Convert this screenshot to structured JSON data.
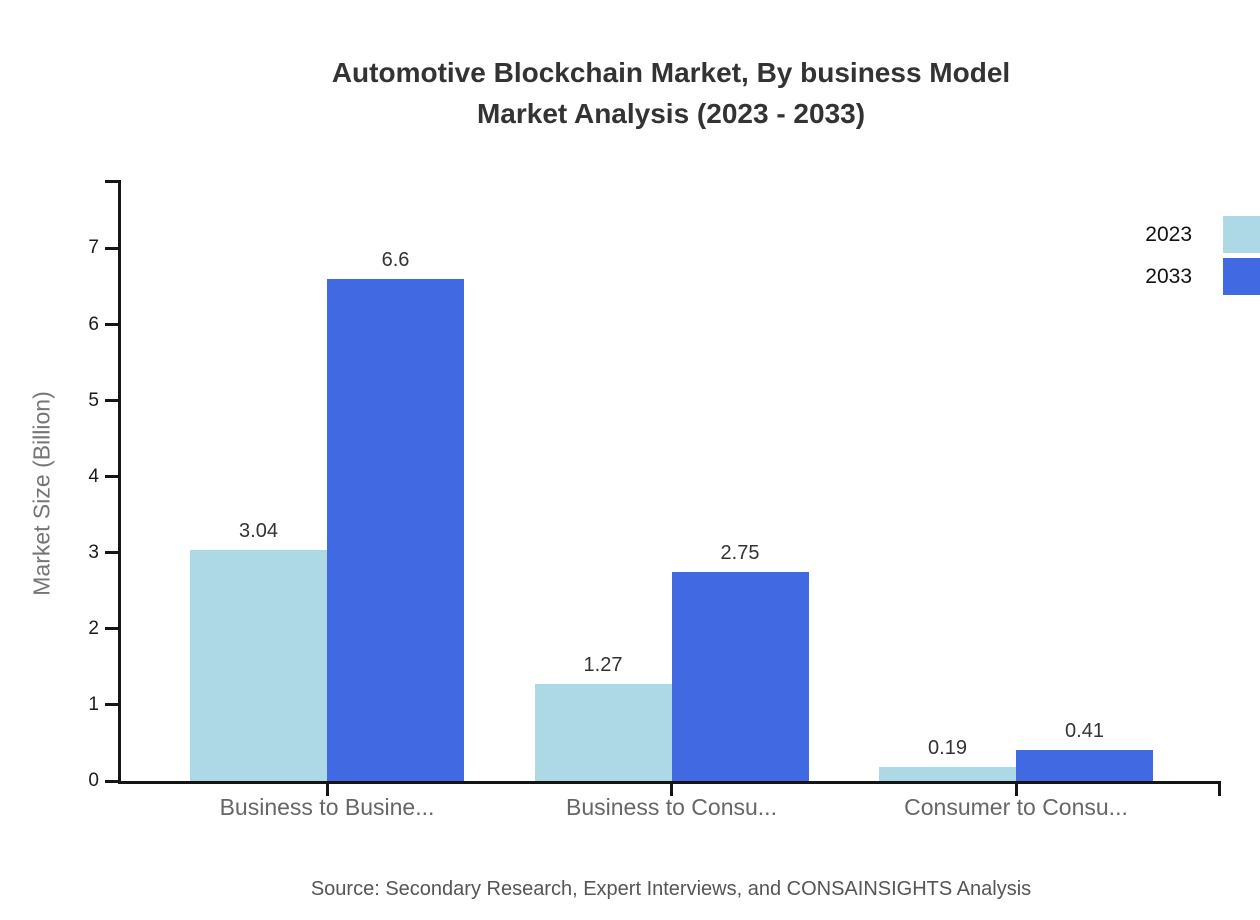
{
  "title": {
    "line1": "Automotive Blockchain Market, By business Model",
    "line2": "Market Analysis (2023 - 2033)"
  },
  "chart_data": {
    "type": "bar",
    "categories": [
      "Business to Busine...",
      "Business to Consu...",
      "Consumer to Consu..."
    ],
    "series": [
      {
        "name": "2023",
        "color": "#ADD8E6",
        "values": [
          3.04,
          1.27,
          0.19
        ]
      },
      {
        "name": "2033",
        "color": "#4169E1",
        "values": [
          6.6,
          2.75,
          0.41
        ]
      }
    ],
    "value_labels": [
      [
        "3.04",
        "1.27",
        "0.19"
      ],
      [
        "6.6",
        "2.75",
        "0.41"
      ]
    ],
    "ylabel": "Market Size (Billion)",
    "xlabel": "",
    "ylim": [
      0,
      7.9
    ],
    "yticks": [
      0,
      1,
      2,
      3,
      4,
      5,
      6,
      7
    ],
    "grid": false,
    "legend_position": "top-right"
  },
  "source": "Source: Secondary Research, Expert Interviews, and CONSAINSIGHTS Analysis",
  "colors": {
    "series_2023": "#ADD8E6",
    "series_2033": "#4169E1",
    "axis": "#151515",
    "title_text": "#333333",
    "category_text": "#666666",
    "axis_title_text": "#757575",
    "source_text": "#555555"
  }
}
